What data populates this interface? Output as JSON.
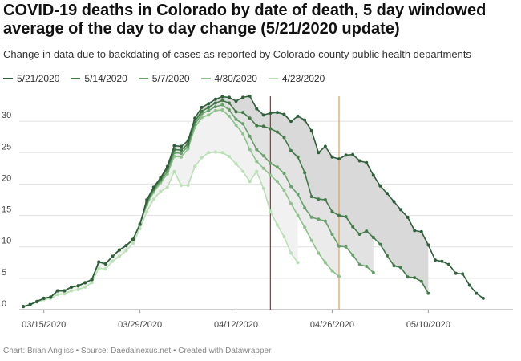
{
  "header": {
    "title": "COVID-19 deaths in Colorado by date of death, 5 day windowed average of the day to day change (5/21/2020 update)",
    "subtitle": "Change in data due to backdating of cases as reported by Colorado county public health departments"
  },
  "footer": {
    "text": "Chart: Brian Angliss • Source: Daedalnexus.net • Created with Datawrapper"
  },
  "chart_data": {
    "type": "line",
    "title": "COVID-19 deaths in Colorado by date of death, 5 day windowed average of the day to day change (5/21/2020 update)",
    "subtitle": "Change in data due to backdating of cases as reported by Colorado county public health departments",
    "xlabel": "",
    "ylabel": "",
    "x_start": "2020-03-12",
    "xlim": [
      "2020-03-12",
      "2020-05-20"
    ],
    "ylim": [
      0,
      35
    ],
    "yticks": [
      0,
      5,
      10,
      15,
      20,
      25,
      30
    ],
    "xticks": [
      "03/15/2020",
      "03/29/2020",
      "04/12/2020",
      "04/26/2020",
      "05/10/2020"
    ],
    "grid": true,
    "legend_position": "top-left",
    "series": [
      {
        "name": "5/21/2020",
        "color": "#2f5e3a",
        "values": [
          0.5,
          0.8,
          1.3,
          1.8,
          2.0,
          3.0,
          3.0,
          3.6,
          3.8,
          4.3,
          4.8,
          7.6,
          7.3,
          8.5,
          9.5,
          10.2,
          11.2,
          13.6,
          17.5,
          19.5,
          21.0,
          22.8,
          26.1,
          26.0,
          26.9,
          30.5,
          32.2,
          32.8,
          33.5,
          33.9,
          33.8,
          33.2,
          33.8,
          34.0,
          32.0,
          31.0,
          31.3,
          31.4,
          31.1,
          30.0,
          30.8,
          30.2,
          28.5,
          25.0,
          26.0,
          24.3,
          24.0,
          24.6,
          24.7,
          23.7,
          23.4,
          21.4,
          19.7,
          18.5,
          17.2,
          15.9,
          14.7,
          12.6,
          12.4,
          10.3,
          7.9,
          7.7,
          7.2,
          5.8,
          5.7,
          3.9,
          2.6,
          1.8
        ]
      },
      {
        "name": "5/14/2020",
        "color": "#427a47",
        "values": [
          0.5,
          0.8,
          1.3,
          1.8,
          2.0,
          3.0,
          3.0,
          3.6,
          3.8,
          4.3,
          4.8,
          7.6,
          7.3,
          8.5,
          9.5,
          10.2,
          11.2,
          13.6,
          17.2,
          19.2,
          20.8,
          22.5,
          25.5,
          25.4,
          26.4,
          30.0,
          31.6,
          32.2,
          32.9,
          33.3,
          32.9,
          31.5,
          31.4,
          30.5,
          29.3,
          29.2,
          28.8,
          28.3,
          27.4,
          25.3,
          24.3,
          21.8,
          18.0,
          17.6,
          17.5,
          15.6,
          15.0,
          14.8,
          13.2,
          12.0,
          12.5,
          11.5,
          10.4,
          8.6,
          7.0,
          6.7,
          5.2,
          5.1,
          4.5,
          2.6
        ]
      },
      {
        "name": "5/7/2020",
        "color": "#68a06b",
        "values": [
          0.5,
          0.8,
          1.3,
          1.8,
          2.0,
          3.0,
          3.0,
          3.6,
          3.8,
          4.3,
          4.8,
          7.6,
          7.3,
          8.5,
          9.5,
          10.2,
          11.2,
          13.6,
          17.0,
          19.0,
          20.5,
          22.0,
          25.0,
          24.9,
          26.0,
          29.5,
          31.2,
          31.7,
          32.3,
          32.6,
          31.8,
          30.3,
          29.6,
          27.6,
          25.5,
          24.5,
          23.3,
          22.7,
          21.7,
          19.6,
          18.4,
          16.2,
          14.7,
          14.4,
          14.1,
          12.0,
          10.1,
          10.0,
          8.7,
          7.2,
          6.9,
          5.9
        ]
      },
      {
        "name": "4/30/2020",
        "color": "#8fc28d",
        "values": [
          0.5,
          0.8,
          1.3,
          1.8,
          2.0,
          3.0,
          3.0,
          3.6,
          3.8,
          4.3,
          4.8,
          7.6,
          7.3,
          8.5,
          9.5,
          10.2,
          11.2,
          13.6,
          16.7,
          18.7,
          20.2,
          21.6,
          24.4,
          24.3,
          25.6,
          29.0,
          30.6,
          31.0,
          31.7,
          31.8,
          30.8,
          29.4,
          28.0,
          25.5,
          23.6,
          22.5,
          21.4,
          20.4,
          19.0,
          16.9,
          15.0,
          13.1,
          11.0,
          9.0,
          7.5,
          6.2,
          5.3
        ]
      },
      {
        "name": "4/23/2020",
        "color": "#b9e0b4",
        "values": [
          0.5,
          0.8,
          1.2,
          1.6,
          1.8,
          2.4,
          2.5,
          3.0,
          3.2,
          3.6,
          4.3,
          6.6,
          6.5,
          7.7,
          8.5,
          9.4,
          10.6,
          12.9,
          15.6,
          17.6,
          18.8,
          19.5,
          22.0,
          19.8,
          19.8,
          22.8,
          24.2,
          25.0,
          25.1,
          25.0,
          24.4,
          23.2,
          22.0,
          20.4,
          22.0,
          19.3,
          15.6,
          13.5,
          11.6,
          9.0,
          7.5
        ]
      }
    ],
    "reference_lines": [
      {
        "date": "2020-04-17",
        "color": "#a0302f"
      },
      {
        "date": "2020-04-27",
        "color": "#e0a050"
      }
    ]
  }
}
